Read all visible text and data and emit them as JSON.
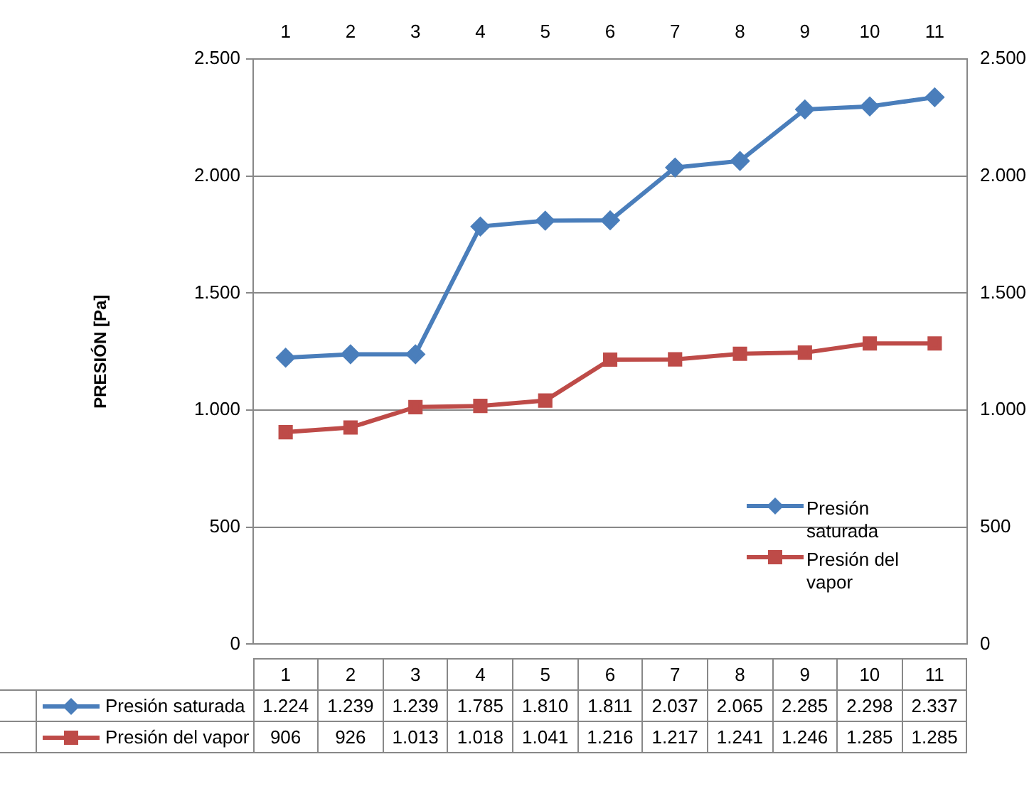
{
  "chart_data": {
    "type": "line",
    "ylabel": "PRESIÓN [Pa]",
    "categories": [
      "1",
      "2",
      "3",
      "4",
      "5",
      "6",
      "7",
      "8",
      "9",
      "10",
      "11"
    ],
    "series": [
      {
        "name": "Presión saturada",
        "color": "#4a7ebb",
        "marker": "diamond",
        "values": [
          1224,
          1239,
          1239,
          1785,
          1810,
          1811,
          2037,
          2065,
          2285,
          2298,
          2337
        ],
        "value_labels": [
          "1.224",
          "1.239",
          "1.239",
          "1.785",
          "1.810",
          "1.811",
          "2.037",
          "2.065",
          "2.285",
          "2.298",
          "2.337"
        ]
      },
      {
        "name": "Presión del vapor",
        "color": "#be4b48",
        "marker": "square",
        "values": [
          906,
          926,
          1013,
          1018,
          1041,
          1216,
          1217,
          1241,
          1246,
          1285,
          1285
        ],
        "value_labels": [
          "906",
          "926",
          "1.013",
          "1.018",
          "1.041",
          "1.216",
          "1.217",
          "1.241",
          "1.246",
          "1.285",
          "1.285"
        ]
      }
    ],
    "ylim": [
      0,
      2500
    ],
    "yticks": [
      {
        "value": 0,
        "label": "0"
      },
      {
        "value": 500,
        "label": "500"
      },
      {
        "value": 1000,
        "label": "1.000"
      },
      {
        "value": 1500,
        "label": "1.500"
      },
      {
        "value": 2000,
        "label": "2.000"
      },
      {
        "value": 2500,
        "label": "2.500"
      }
    ],
    "y2lim": [
      0,
      2500
    ],
    "y2ticks": [
      {
        "value": 0,
        "label": "0"
      },
      {
        "value": 500,
        "label": "500"
      },
      {
        "value": 1000,
        "label": "1.000"
      },
      {
        "value": 1500,
        "label": "1.500"
      },
      {
        "value": 2000,
        "label": "2.000"
      },
      {
        "value": 2500,
        "label": "2.500"
      }
    ],
    "grid": "y",
    "legend": "right",
    "line_style": "solid"
  }
}
